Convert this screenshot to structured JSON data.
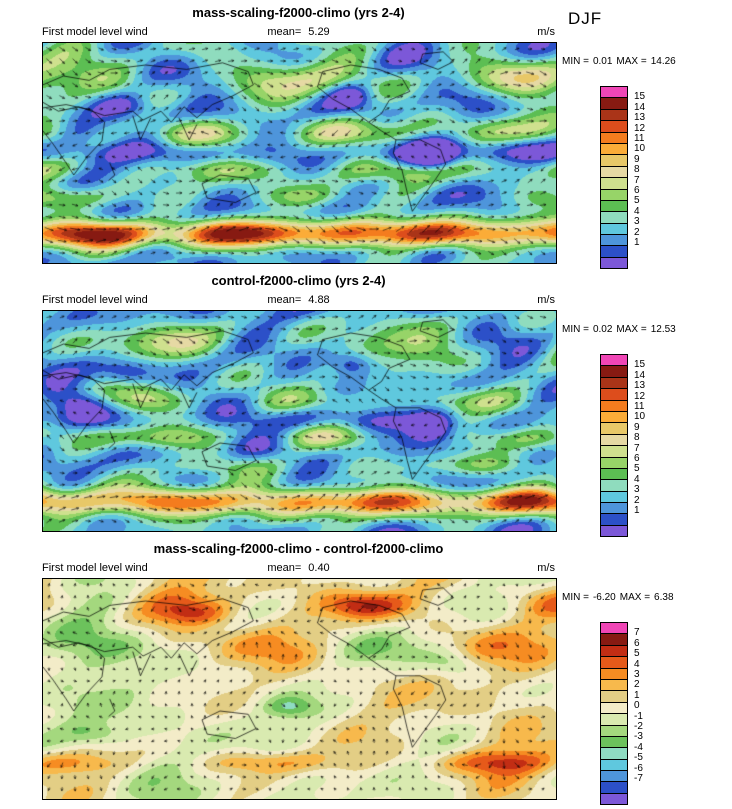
{
  "season_label": "DJF",
  "panels": [
    {
      "title": "mass-scaling-f2000-climo (yrs 2-4)",
      "variable": "First model level wind",
      "mean_label": "mean=",
      "mean_value": "5.29",
      "units": "m/s",
      "stats": {
        "min_label": "MIN =",
        "min": "0.01",
        "max_label": "MAX =",
        "max": "14.26"
      },
      "colorbar": {
        "levels": [
          "15",
          "14",
          "13",
          "12",
          "11",
          "10",
          "9",
          "8",
          "7",
          "6",
          "5",
          "4",
          "3",
          "2",
          "1"
        ],
        "colors": [
          "#F046B6",
          "#871A12",
          "#AA3418",
          "#DD4D1C",
          "#F47C1E",
          "#FBAC38",
          "#E8C868",
          "#E6D9A4",
          "#CFE08E",
          "#97D468",
          "#5CBE53",
          "#8FDCBE",
          "#5FC8DE",
          "#4E95DB",
          "#2C50C8",
          "#7C58D8"
        ]
      }
    },
    {
      "title": "control-f2000-climo (yrs 2-4)",
      "variable": "First model level wind",
      "mean_label": "mean=",
      "mean_value": "4.88",
      "units": "m/s",
      "stats": {
        "min_label": "MIN =",
        "min": "0.02",
        "max_label": "MAX =",
        "max": "12.53"
      },
      "colorbar": {
        "levels": [
          "15",
          "14",
          "13",
          "12",
          "11",
          "10",
          "9",
          "8",
          "7",
          "6",
          "5",
          "4",
          "3",
          "2",
          "1"
        ],
        "colors": [
          "#F046B6",
          "#871A12",
          "#AA3418",
          "#DD4D1C",
          "#F47C1E",
          "#FBAC38",
          "#E8C868",
          "#E6D9A4",
          "#CFE08E",
          "#97D468",
          "#5CBE53",
          "#8FDCBE",
          "#5FC8DE",
          "#4E95DB",
          "#2C50C8",
          "#7C58D8"
        ]
      }
    },
    {
      "title": "mass-scaling-f2000-climo - control-f2000-climo",
      "variable": "First model level wind",
      "mean_label": "mean=",
      "mean_value": "0.40",
      "units": "m/s",
      "stats": {
        "min_label": "MIN =",
        "min": "-6.20",
        "max_label": "MAX =",
        "max": "6.38"
      },
      "colorbar": {
        "levels": [
          "7",
          "6",
          "5",
          "4",
          "3",
          "2",
          "1",
          "0",
          "-1",
          "-2",
          "-3",
          "-4",
          "-5",
          "-6",
          "-7"
        ],
        "colors": [
          "#F046B6",
          "#871A12",
          "#C22D14",
          "#E65A1A",
          "#F68C22",
          "#F7B94C",
          "#E3CE85",
          "#F3ECC8",
          "#D9EAB0",
          "#A4D87E",
          "#6CC25C",
          "#8FDCC2",
          "#5FC8DE",
          "#4E95DB",
          "#2C50C8",
          "#7C58D8"
        ]
      }
    }
  ],
  "chart_data": [
    {
      "type": "heatmap",
      "title": "mass-scaling-f2000-climo (yrs 2-4)",
      "variable": "First model level wind",
      "season": "DJF",
      "units": "m/s",
      "mean": 5.29,
      "min": 0.01,
      "max": 14.26,
      "colorbar_levels": [
        1,
        2,
        3,
        4,
        5,
        6,
        7,
        8,
        9,
        10,
        11,
        12,
        13,
        14,
        15
      ],
      "colorbar_colors_top_to_bottom": [
        "#F046B6",
        "#871A12",
        "#AA3418",
        "#DD4D1C",
        "#F47C1E",
        "#FBAC38",
        "#E8C868",
        "#E6D9A4",
        "#CFE08E",
        "#97D468",
        "#5CBE53",
        "#8FDCBE",
        "#5FC8DE",
        "#4E95DB",
        "#2C50C8",
        "#7C58D8"
      ],
      "overlay": "wind vector arrows",
      "legend_position": "right"
    },
    {
      "type": "heatmap",
      "title": "control-f2000-climo (yrs 2-4)",
      "variable": "First model level wind",
      "season": "DJF",
      "units": "m/s",
      "mean": 4.88,
      "min": 0.02,
      "max": 12.53,
      "colorbar_levels": [
        1,
        2,
        3,
        4,
        5,
        6,
        7,
        8,
        9,
        10,
        11,
        12,
        13,
        14,
        15
      ],
      "colorbar_colors_top_to_bottom": [
        "#F046B6",
        "#871A12",
        "#AA3418",
        "#DD4D1C",
        "#F47C1E",
        "#FBAC38",
        "#E8C868",
        "#E6D9A4",
        "#CFE08E",
        "#97D468",
        "#5CBE53",
        "#8FDCBE",
        "#5FC8DE",
        "#4E95DB",
        "#2C50C8",
        "#7C58D8"
      ],
      "overlay": "wind vector arrows",
      "legend_position": "right"
    },
    {
      "type": "heatmap",
      "title": "mass-scaling-f2000-climo - control-f2000-climo",
      "variable": "First model level wind",
      "season": "DJF",
      "units": "m/s",
      "mean": 0.4,
      "min": -6.2,
      "max": 6.38,
      "colorbar_levels": [
        -7,
        -6,
        -5,
        -4,
        -3,
        -2,
        -1,
        0,
        1,
        2,
        3,
        4,
        5,
        6,
        7
      ],
      "colorbar_colors_top_to_bottom": [
        "#F046B6",
        "#871A12",
        "#C22D14",
        "#E65A1A",
        "#F68C22",
        "#F7B94C",
        "#E3CE85",
        "#F3ECC8",
        "#D9EAB0",
        "#A4D87E",
        "#6CC25C",
        "#8FDCC2",
        "#5FC8DE",
        "#4E95DB",
        "#2C50C8",
        "#7C58D8"
      ],
      "overlay": "wind vector difference arrows",
      "legend_position": "right"
    }
  ]
}
